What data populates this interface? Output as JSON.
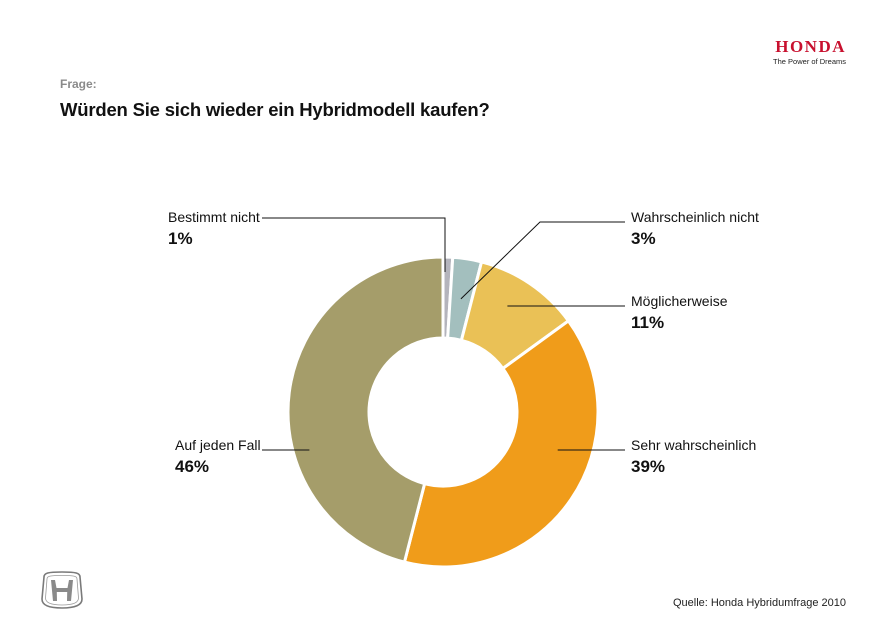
{
  "brand": {
    "name": "HONDA",
    "tagline": "The Power of Dreams",
    "color": "#c8102e"
  },
  "header": {
    "label": "Frage:",
    "question": "Würden Sie sich wieder ein Hybridmodell kaufen?"
  },
  "chart_data": {
    "type": "pie",
    "donut": true,
    "title": "Würden Sie sich wieder ein Hybridmodell kaufen?",
    "categories": [
      "Bestimmt nicht",
      "Wahrscheinlich nicht",
      "Möglicherweise",
      "Sehr wahrscheinlich",
      "Auf jeden Fall"
    ],
    "values": [
      1,
      3,
      11,
      39,
      46
    ],
    "value_labels": [
      "1%",
      "3%",
      "11%",
      "39%",
      "46%"
    ],
    "colors": [
      "#b4b4bc",
      "#a3bfbe",
      "#eac156",
      "#f09c1a",
      "#a59d6a"
    ]
  },
  "footer": {
    "source": "Quelle: Honda Hybridumfrage 2010"
  }
}
